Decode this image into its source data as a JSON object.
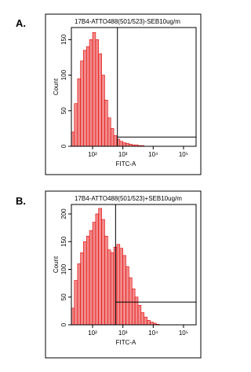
{
  "chart_data": [
    {
      "type": "histogram",
      "panel_label": "A.",
      "title": "17B4-ATTO488(501/523)-SEB10ug/m",
      "x_label": "FITC-A",
      "y_label": "Count",
      "log_x": true,
      "color": "#f28a8a",
      "edge_color": "#e00000",
      "bins": [
        20,
        25,
        32,
        40,
        50,
        63,
        79,
        100,
        126,
        158,
        200,
        251,
        316,
        398,
        501,
        631,
        794,
        1000,
        1259,
        1585,
        1995,
        2512,
        3162,
        3981,
        5012,
        6310,
        7943,
        10000,
        12589,
        15849,
        19953,
        25119,
        31623
      ],
      "values": [
        20,
        60,
        95,
        120,
        135,
        140,
        150,
        160,
        150,
        130,
        100,
        65,
        40,
        25,
        15,
        10,
        7,
        5,
        4,
        3,
        2,
        2,
        1,
        1,
        0,
        0,
        0,
        0,
        0,
        0,
        0,
        0
      ],
      "xlim": [
        20,
        260000
      ],
      "ylim": [
        0,
        167
      ],
      "xticks": [
        {
          "value": 100,
          "label": "10²"
        },
        {
          "value": 1000,
          "label": "10³"
        },
        {
          "value": 10000,
          "label": "10⁴"
        },
        {
          "value": 100000,
          "label": "10⁵"
        }
      ],
      "yticks": [
        0,
        50,
        100,
        150
      ],
      "gate": {
        "x": 660,
        "y": 13
      }
    },
    {
      "type": "histogram",
      "panel_label": "B.",
      "title": "17B4-ATTO488(501/523)+SEB10ug/m",
      "x_label": "FITC-A",
      "y_label": "Count",
      "log_x": true,
      "color": "#f28a8a",
      "edge_color": "#e00000",
      "bins": [
        20,
        25,
        32,
        40,
        50,
        63,
        79,
        100,
        126,
        158,
        200,
        251,
        316,
        398,
        501,
        631,
        794,
        1000,
        1259,
        1585,
        1995,
        2512,
        3162,
        3981,
        5012,
        6310,
        7943,
        10000,
        12589,
        15849,
        19953,
        25119,
        31623
      ],
      "values": [
        30,
        80,
        110,
        130,
        150,
        160,
        170,
        185,
        200,
        210,
        190,
        160,
        135,
        130,
        140,
        145,
        138,
        125,
        105,
        85,
        65,
        50,
        35,
        22,
        14,
        8,
        5,
        3,
        1,
        0,
        0,
        0
      ],
      "xlim": [
        20,
        260000
      ],
      "ylim": [
        0,
        217
      ],
      "xticks": [
        {
          "value": 100,
          "label": "10²"
        },
        {
          "value": 1000,
          "label": "10³"
        },
        {
          "value": 10000,
          "label": "10⁴"
        },
        {
          "value": 100000,
          "label": "10⁵"
        }
      ],
      "yticks": [
        0,
        50,
        100,
        150,
        200
      ],
      "gate": {
        "x": 575,
        "y": 41
      }
    }
  ]
}
